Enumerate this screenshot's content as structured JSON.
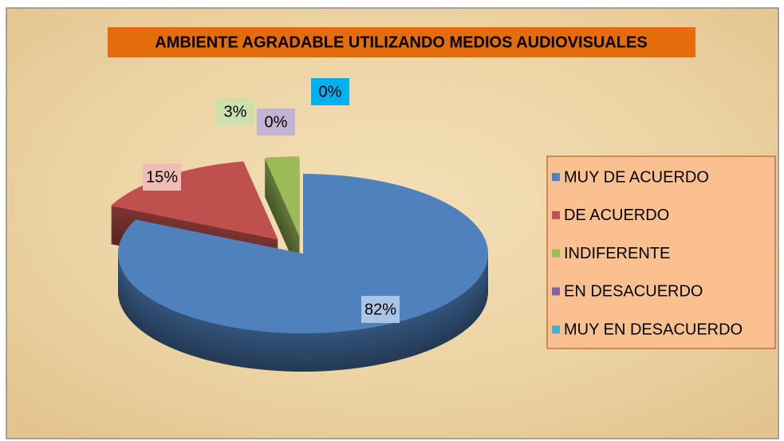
{
  "chart_data": {
    "type": "pie",
    "title": "AMBIENTE AGRADABLE UTILIZANDO MEDIOS AUDIOVISUALES",
    "categories": [
      "MUY DE ACUERDO",
      "DE ACUERDO",
      "INDIFERENTE",
      "EN DESACUERDO",
      "MUY EN DESACUERDO"
    ],
    "values": [
      82,
      15,
      3,
      0,
      0
    ],
    "value_labels": [
      "82%",
      "15%",
      "3%",
      "0%",
      "0%"
    ],
    "colors": [
      "#4f81bd",
      "#c0504d",
      "#9bbb59",
      "#8064a2",
      "#4bacc6"
    ],
    "legend": "right"
  }
}
